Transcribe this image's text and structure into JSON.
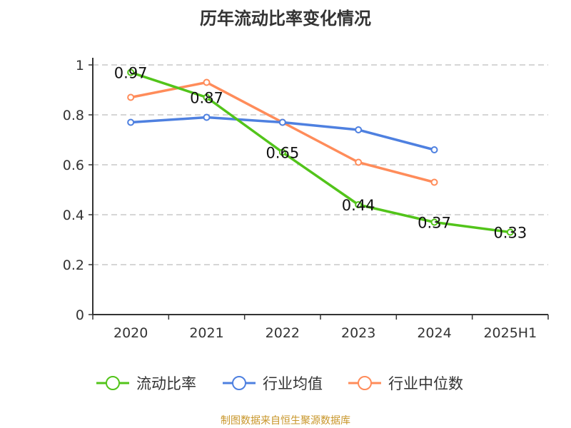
{
  "chart_data": {
    "type": "line",
    "title": "历年流动比率变化情况",
    "categories": [
      "2020",
      "2021",
      "2022",
      "2023",
      "2024",
      "2025H1"
    ],
    "ylim": [
      0,
      1
    ],
    "yticks": [
      "0",
      "0.2",
      "0.4",
      "0.6",
      "0.8",
      "1"
    ],
    "yticks_values": [
      0,
      0.2,
      0.4,
      0.6,
      0.8,
      1
    ],
    "grid": true,
    "legend": "bottom",
    "series": [
      {
        "name": "流动比率",
        "color": "#52c41a",
        "values": [
          0.97,
          0.87,
          0.65,
          0.44,
          0.37,
          0.33
        ],
        "labels": [
          "0.97",
          "0.87",
          "0.65",
          "0.44",
          "0.37",
          "0.33"
        ]
      },
      {
        "name": "行业均值",
        "color": "#4e80e0",
        "values": [
          0.77,
          0.79,
          0.77,
          0.74,
          0.66,
          null
        ]
      },
      {
        "name": "行业中位数",
        "color": "#ff8c5a",
        "values": [
          0.87,
          0.93,
          0.77,
          0.61,
          0.53,
          null
        ]
      }
    ]
  },
  "source": "制图数据来自恒生聚源数据库"
}
